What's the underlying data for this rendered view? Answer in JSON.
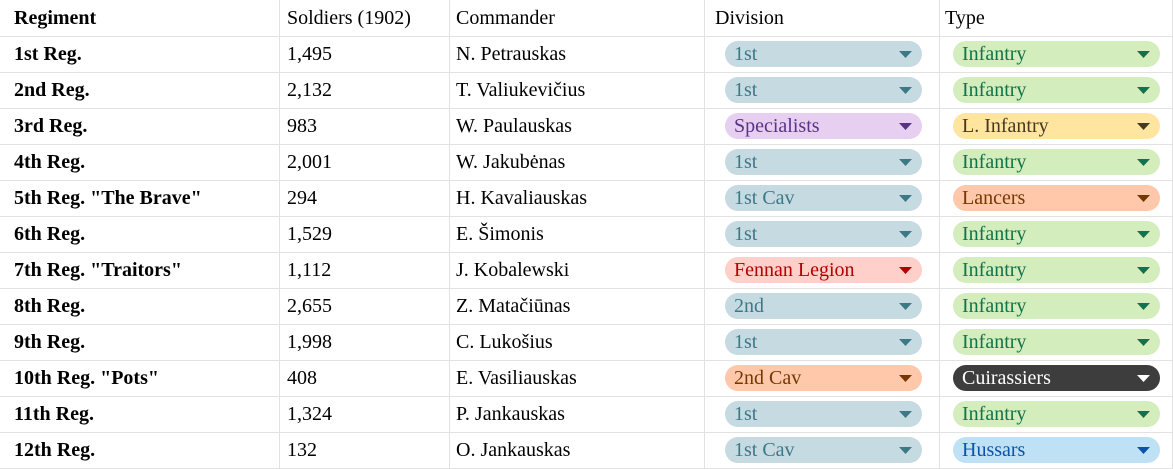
{
  "table": {
    "columns": [
      "Regiment",
      "Soldiers (1902)",
      "Commander",
      "Division",
      "Type"
    ],
    "rows": [
      {
        "regiment": "1st Reg.",
        "soldiers": "1,495",
        "commander": "N. Petrauskas",
        "division": {
          "label": "1st",
          "bg": "#c6dbe1",
          "fg": "#3d7887"
        },
        "type": {
          "label": "Infantry",
          "bg": "#d4edbc",
          "fg": "#11734b"
        }
      },
      {
        "regiment": "2nd Reg.",
        "soldiers": "2,132",
        "commander": "T. Valiukevičius",
        "division": {
          "label": "1st",
          "bg": "#c6dbe1",
          "fg": "#3d7887"
        },
        "type": {
          "label": "Infantry",
          "bg": "#d4edbc",
          "fg": "#11734b"
        }
      },
      {
        "regiment": "3rd Reg.",
        "soldiers": "983",
        "commander": "W. Paulauskas",
        "division": {
          "label": "Specialists",
          "bg": "#e6cff1",
          "fg": "#5a3286"
        },
        "type": {
          "label": "L. Infantry",
          "bg": "#ffe5a0",
          "fg": "#473821"
        }
      },
      {
        "regiment": "4th Reg.",
        "soldiers": "2,001",
        "commander": "W. Jakubėnas",
        "division": {
          "label": "1st",
          "bg": "#c6dbe1",
          "fg": "#3d7887"
        },
        "type": {
          "label": "Infantry",
          "bg": "#d4edbc",
          "fg": "#11734b"
        }
      },
      {
        "regiment": "5th Reg. \"The Brave\"",
        "soldiers": "294",
        "commander": "H. Kavaliauskas",
        "division": {
          "label": "1st Cav",
          "bg": "#c6dbe1",
          "fg": "#3d7887"
        },
        "type": {
          "label": "Lancers",
          "bg": "#ffc8aa",
          "fg": "#753800"
        }
      },
      {
        "regiment": "6th Reg.",
        "soldiers": "1,529",
        "commander": "E. Šimonis",
        "division": {
          "label": "1st",
          "bg": "#c6dbe1",
          "fg": "#3d7887"
        },
        "type": {
          "label": "Infantry",
          "bg": "#d4edbc",
          "fg": "#11734b"
        }
      },
      {
        "regiment": "7th Reg. \"Traitors\"",
        "soldiers": "1,112",
        "commander": "J. Kobalewski",
        "division": {
          "label": "Fennan Legion",
          "bg": "#ffcfc9",
          "fg": "#b10202"
        },
        "type": {
          "label": "Infantry",
          "bg": "#d4edbc",
          "fg": "#11734b"
        }
      },
      {
        "regiment": "8th Reg.",
        "soldiers": "2,655",
        "commander": "Z. Matačiūnas",
        "division": {
          "label": "2nd",
          "bg": "#c6dbe1",
          "fg": "#3d7887"
        },
        "type": {
          "label": "Infantry",
          "bg": "#d4edbc",
          "fg": "#11734b"
        }
      },
      {
        "regiment": "9th Reg.",
        "soldiers": "1,998",
        "commander": "C. Lukošius",
        "division": {
          "label": "1st",
          "bg": "#c6dbe1",
          "fg": "#3d7887"
        },
        "type": {
          "label": "Infantry",
          "bg": "#d4edbc",
          "fg": "#11734b"
        }
      },
      {
        "regiment": "10th Reg. \"Pots\"",
        "soldiers": "408",
        "commander": "E. Vasiliauskas",
        "division": {
          "label": "2nd Cav",
          "bg": "#ffc8aa",
          "fg": "#753800"
        },
        "type": {
          "label": "Cuirassiers",
          "bg": "#3d3d3d",
          "fg": "#ffffff"
        }
      },
      {
        "regiment": "11th Reg.",
        "soldiers": "1,324",
        "commander": "P. Jankauskas",
        "division": {
          "label": "1st",
          "bg": "#c6dbe1",
          "fg": "#3d7887"
        },
        "type": {
          "label": "Infantry",
          "bg": "#d4edbc",
          "fg": "#11734b"
        }
      },
      {
        "regiment": "12th Reg.",
        "soldiers": "132",
        "commander": "O. Jankauskas",
        "division": {
          "label": "1st Cav",
          "bg": "#c6dbe1",
          "fg": "#3d7887"
        },
        "type": {
          "label": "Hussars",
          "bg": "#bfe1f6",
          "fg": "#0a53a8"
        }
      }
    ]
  }
}
